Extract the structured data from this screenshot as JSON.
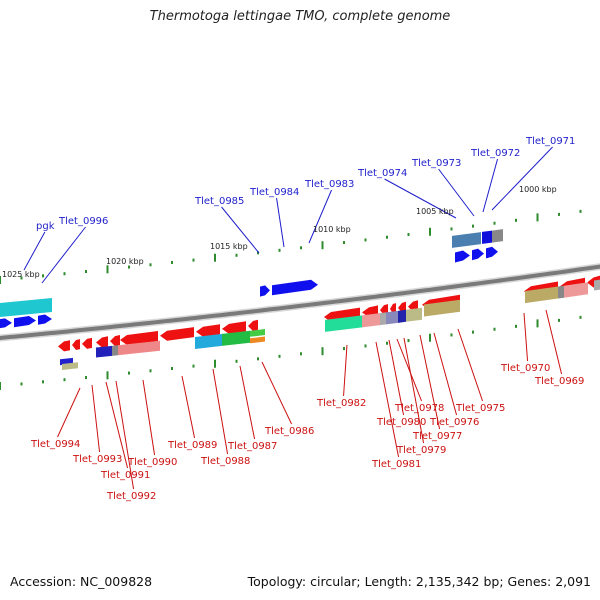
{
  "title": "Thermotoga lettingae TMO, complete genome",
  "footer": {
    "accession": "Accession: NC_009828",
    "topology": "Topology: circular; Length: 2,135,342 bp; Genes: 2,091"
  },
  "colors": {
    "backbone": "#7a7a7a",
    "tick": "#2e8b2e",
    "forward_label": "#1f1fcc",
    "reverse_label": "#cc1111",
    "forward_gene": "#1010ee",
    "reverse_gene": "#ee1111"
  },
  "scale_labels": [
    "1025 kbp",
    "1020 kbp",
    "1015 kbp",
    "1010 kbp",
    "1005 kbp",
    "1000 kbp"
  ],
  "forward_genes": [
    "pgk",
    "Tlet_0996",
    "Tlet_0985",
    "Tlet_0984",
    "Tlet_0983",
    "Tlet_0974",
    "Tlet_0973",
    "Tlet_0972",
    "Tlet_0971"
  ],
  "reverse_genes": [
    "Tlet_0994",
    "Tlet_0993",
    "Tlet_0991",
    "Tlet_0992",
    "Tlet_0990",
    "Tlet_0989",
    "Tlet_0988",
    "Tlet_0987",
    "Tlet_0986",
    "Tlet_0982",
    "Tlet_0978",
    "Tlet_0980",
    "Tlet_0981",
    "Tlet_0979",
    "Tlet_0977",
    "Tlet_0976",
    "Tlet_0975",
    "Tlet_0970",
    "Tlet_0969"
  ]
}
